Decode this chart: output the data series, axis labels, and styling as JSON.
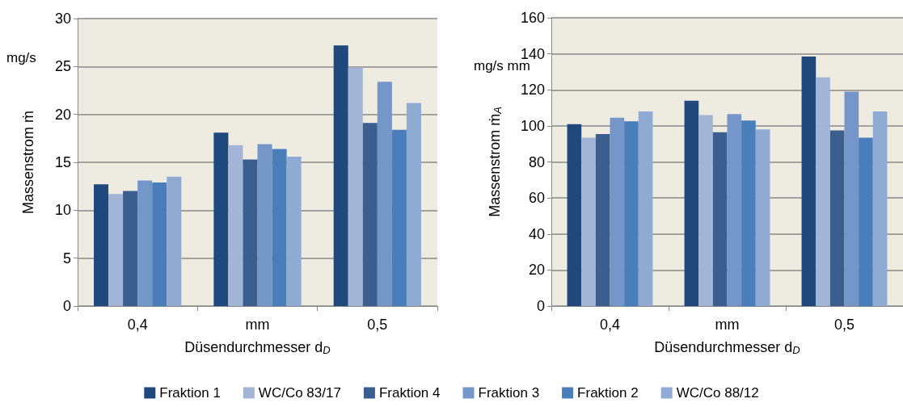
{
  "chart_data": [
    {
      "type": "bar",
      "xlabel": "Düsendurchmesser d$_{D}$",
      "ylabel": "Massenstrom ṁ",
      "categories": [
        "0,4",
        "mm",
        "0,5"
      ],
      "series": [
        {
          "name": "Fraktion 1",
          "color": "#1f497d",
          "values": [
            12.7,
            18.1,
            27.2
          ]
        },
        {
          "name": "WC/Co 83/17",
          "color": "#a3b5d6",
          "values": [
            11.7,
            16.8,
            24.9
          ]
        },
        {
          "name": "Fraktion 4",
          "color": "#3a5f8e",
          "values": [
            12.0,
            15.3,
            19.1
          ]
        },
        {
          "name": "Fraktion 3",
          "color": "#7596c8",
          "values": [
            13.1,
            16.9,
            23.4
          ]
        },
        {
          "name": "Fraktion 2",
          "color": "#4a7eba",
          "values": [
            12.9,
            16.4,
            18.4
          ]
        },
        {
          "name": "WC/Co 88/12",
          "color": "#8fabd4",
          "values": [
            13.5,
            15.6,
            21.2
          ]
        }
      ],
      "ylim": [
        0,
        30
      ],
      "yticks": [
        0,
        5,
        10,
        15,
        20,
        25,
        30
      ],
      "grid": "y",
      "legend": "bottom",
      "annotations": [
        "mg/s"
      ]
    },
    {
      "type": "bar",
      "xlabel": "Düsendurchmesser d$_{D}$",
      "ylabel": "Massenstrom ṁ$_{A}$",
      "categories": [
        "0,4",
        "mm",
        "0,5"
      ],
      "series": [
        {
          "color": "#1f497d",
          "values": [
            101,
            114,
            138.5
          ]
        },
        {
          "color": "#a3b5d6",
          "values": [
            93.5,
            106,
            127
          ]
        },
        {
          "color": "#3a5f8e",
          "values": [
            95.5,
            96.5,
            97.5
          ]
        },
        {
          "color": "#7596c8",
          "values": [
            104.5,
            106.5,
            119
          ]
        },
        {
          "color": "#4a7eba",
          "values": [
            102.5,
            103,
            93.5
          ]
        },
        {
          "color": "#8fabd4",
          "values": [
            108,
            98,
            108
          ]
        }
      ],
      "ylim": [
        0,
        160
      ],
      "yticks": [
        0,
        20,
        40,
        60,
        80,
        100,
        120,
        140,
        160
      ],
      "grid": "y",
      "annotations": [
        "mg/s mm"
      ]
    }
  ]
}
